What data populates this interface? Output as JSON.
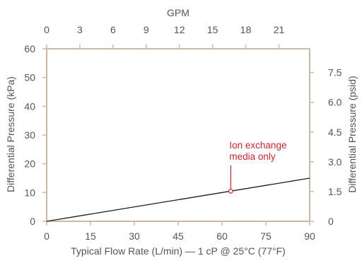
{
  "chart_data": {
    "type": "line",
    "title": "",
    "xlabel": "Typical Flow Rate (L/min) — 1 cP @ 25°C (77°F)",
    "ylabel": "Differential Pressure (kPa)",
    "x2label": "GPM",
    "y2label": "Differential Pressure (psid)",
    "xlim": [
      0,
      90
    ],
    "ylim": [
      0,
      60
    ],
    "x2lim": [
      0,
      23.78
    ],
    "y2lim": [
      0,
      8.7
    ],
    "xticks": [
      "0",
      "15",
      "30",
      "45",
      "60",
      "75",
      "90"
    ],
    "yticks": [
      "0",
      "10",
      "20",
      "30",
      "40",
      "50",
      "60"
    ],
    "x2ticks": [
      "0",
      "3",
      "6",
      "9",
      "12",
      "15",
      "18",
      "21"
    ],
    "y2ticks": [
      "0",
      "1.5",
      "3.0",
      "4.5",
      "6.0",
      "7.5"
    ],
    "grid": false,
    "series": [
      {
        "x": [
          0,
          90
        ],
        "y": [
          0,
          15
        ]
      }
    ],
    "annotations": [
      {
        "lines": [
          "Ion exchange",
          "media only"
        ],
        "x": 63,
        "y": 10.5
      }
    ],
    "colors": {
      "frame": "#c8b9a8",
      "line": "#1a1a1a",
      "annotation": "#c0282d",
      "text": "#555555"
    }
  }
}
